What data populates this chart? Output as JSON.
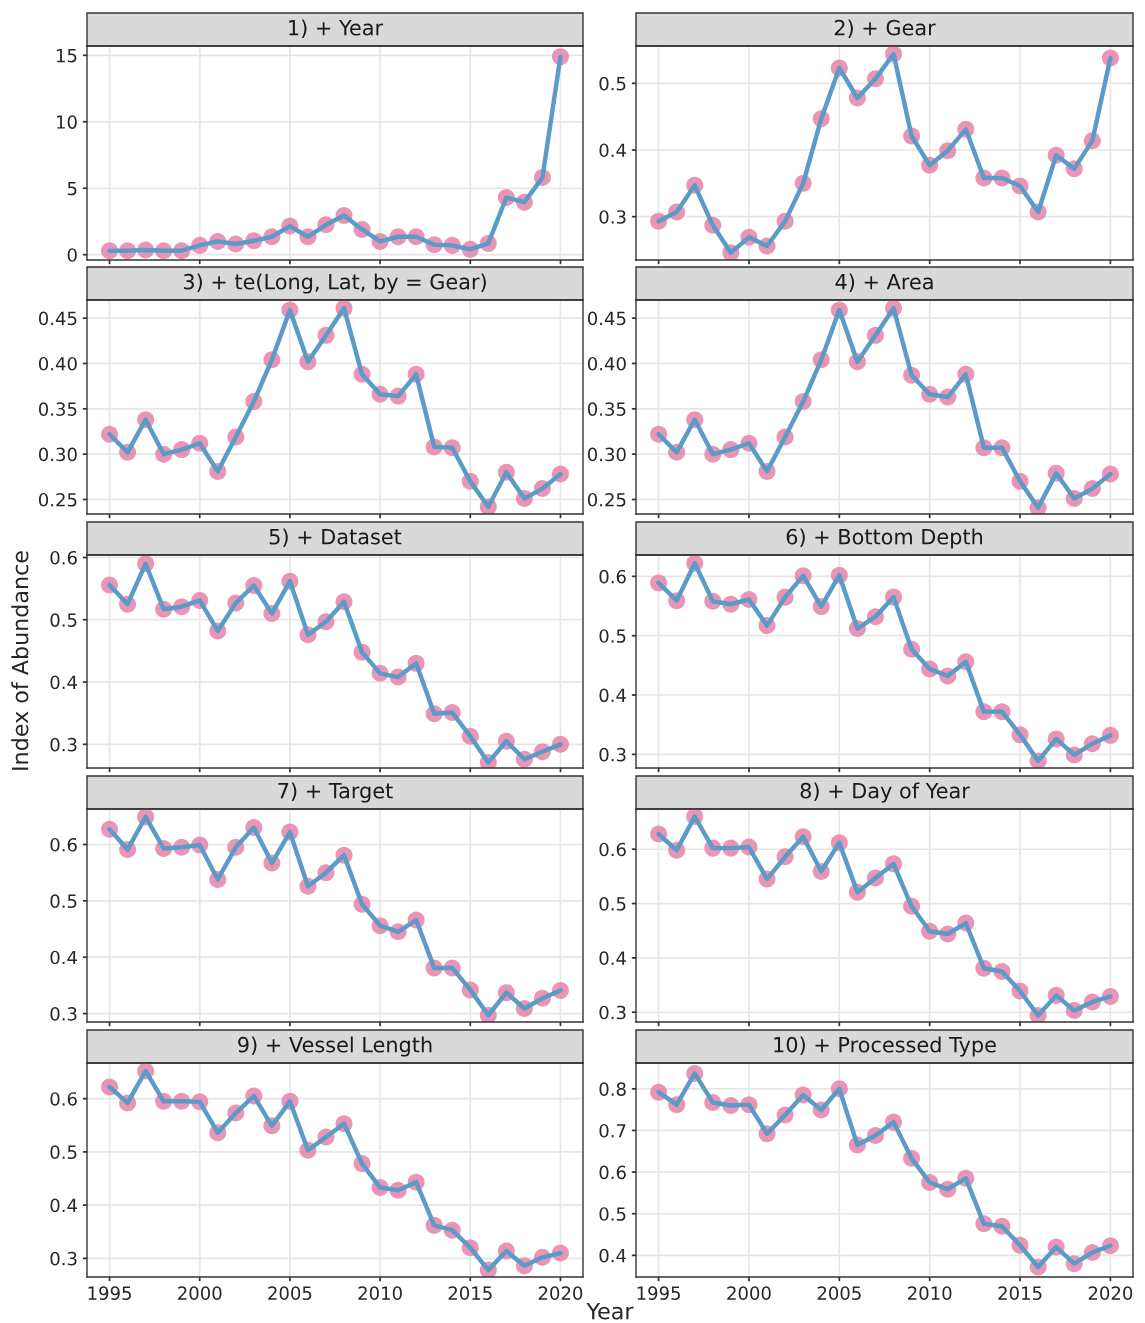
{
  "chart_data": [
    {
      "type": "line",
      "title": "1) + Year",
      "x": [
        1995,
        1996,
        1997,
        1998,
        1999,
        2000,
        2001,
        2002,
        2003,
        2004,
        2005,
        2006,
        2007,
        2008,
        2009,
        2010,
        2011,
        2012,
        2013,
        2014,
        2015,
        2016,
        2017,
        2018,
        2019,
        2020
      ],
      "xlim": [
        1993.75,
        2021.25
      ],
      "xticks": [
        1995,
        2000,
        2005,
        2010,
        2015,
        2020
      ],
      "ylim": [
        -0.4,
        15.7
      ],
      "yticks": [
        0,
        5,
        10,
        15
      ],
      "tick_labels": "y",
      "grid": true,
      "series": [
        {
          "type": "scatter",
          "color": "#e882a9",
          "marker": "circle",
          "values": [
            0.3,
            0.3,
            0.35,
            0.3,
            0.3,
            0.7,
            1.0,
            0.8,
            1.05,
            1.35,
            2.15,
            1.35,
            2.25,
            2.95,
            1.9,
            1.0,
            1.35,
            1.35,
            0.75,
            0.7,
            0.4,
            0.85,
            4.3,
            3.95,
            5.8,
            14.9
          ]
        },
        {
          "type": "line",
          "color": "#5b9bc8",
          "values": [
            0.3,
            0.3,
            0.35,
            0.3,
            0.3,
            0.7,
            1.0,
            0.8,
            1.05,
            1.35,
            2.15,
            1.35,
            2.25,
            2.95,
            1.9,
            1.0,
            1.35,
            1.35,
            0.75,
            0.7,
            0.4,
            0.85,
            4.3,
            3.95,
            5.8,
            14.9
          ]
        }
      ]
    },
    {
      "type": "line",
      "title": "2) + Gear",
      "x": [
        1995,
        1996,
        1997,
        1998,
        1999,
        2000,
        2001,
        2002,
        2003,
        2004,
        2005,
        2006,
        2007,
        2008,
        2009,
        2010,
        2011,
        2012,
        2013,
        2014,
        2015,
        2016,
        2017,
        2018,
        2019,
        2020
      ],
      "xlim": [
        1993.75,
        2021.25
      ],
      "xticks": [
        1995,
        2000,
        2005,
        2010,
        2015,
        2020
      ],
      "ylim": [
        0.235,
        0.556
      ],
      "yticks": [
        0.3,
        0.4,
        0.5
      ],
      "tick_labels": "y",
      "grid": true,
      "series": [
        {
          "type": "scatter",
          "color": "#e882a9",
          "marker": "circle",
          "values": [
            0.293,
            0.307,
            0.347,
            0.287,
            0.246,
            0.269,
            0.256,
            0.293,
            0.35,
            0.447,
            0.523,
            0.478,
            0.507,
            0.544,
            0.421,
            0.377,
            0.399,
            0.431,
            0.358,
            0.358,
            0.346,
            0.307,
            0.392,
            0.372,
            0.414,
            0.538
          ]
        },
        {
          "type": "line",
          "color": "#5b9bc8",
          "values": [
            0.293,
            0.307,
            0.347,
            0.287,
            0.246,
            0.269,
            0.256,
            0.293,
            0.35,
            0.447,
            0.523,
            0.478,
            0.507,
            0.544,
            0.421,
            0.377,
            0.399,
            0.431,
            0.358,
            0.358,
            0.346,
            0.307,
            0.392,
            0.372,
            0.414,
            0.538
          ]
        }
      ]
    },
    {
      "type": "line",
      "title": "3) + te(Long, Lat, by = Gear)",
      "x": [
        1995,
        1996,
        1997,
        1998,
        1999,
        2000,
        2001,
        2002,
        2003,
        2004,
        2005,
        2006,
        2007,
        2008,
        2009,
        2010,
        2011,
        2012,
        2013,
        2014,
        2015,
        2016,
        2017,
        2018,
        2019,
        2020
      ],
      "xlim": [
        1993.75,
        2021.25
      ],
      "xticks": [
        1995,
        2000,
        2005,
        2010,
        2015,
        2020
      ],
      "ylim": [
        0.234,
        0.47
      ],
      "yticks": [
        {
          "value": 0.25,
          "label": "0.25"
        },
        {
          "value": 0.3,
          "label": "0.30"
        },
        {
          "value": 0.35,
          "label": "0.35"
        },
        {
          "value": 0.4,
          "label": "0.40"
        },
        {
          "value": 0.45,
          "label": "0.45"
        }
      ],
      "tick_labels": "y",
      "grid": true,
      "series": [
        {
          "type": "scatter",
          "color": "#e882a9",
          "marker": "circle",
          "values": [
            0.322,
            0.302,
            0.338,
            0.3,
            0.305,
            0.312,
            0.281,
            0.319,
            0.358,
            0.404,
            0.459,
            0.402,
            0.431,
            0.461,
            0.388,
            0.366,
            0.364,
            0.388,
            0.308,
            0.307,
            0.27,
            0.242,
            0.28,
            0.251,
            0.262,
            0.278
          ]
        },
        {
          "type": "line",
          "color": "#5b9bc8",
          "values": [
            0.322,
            0.302,
            0.338,
            0.3,
            0.305,
            0.312,
            0.281,
            0.319,
            0.358,
            0.404,
            0.459,
            0.402,
            0.431,
            0.461,
            0.388,
            0.366,
            0.364,
            0.388,
            0.308,
            0.307,
            0.27,
            0.242,
            0.28,
            0.251,
            0.262,
            0.278
          ]
        }
      ]
    },
    {
      "type": "line",
      "title": "4) + Area",
      "x": [
        1995,
        1996,
        1997,
        1998,
        1999,
        2000,
        2001,
        2002,
        2003,
        2004,
        2005,
        2006,
        2007,
        2008,
        2009,
        2010,
        2011,
        2012,
        2013,
        2014,
        2015,
        2016,
        2017,
        2018,
        2019,
        2020
      ],
      "xlim": [
        1993.75,
        2021.25
      ],
      "xticks": [
        1995,
        2000,
        2005,
        2010,
        2015,
        2020
      ],
      "ylim": [
        0.234,
        0.47
      ],
      "yticks": [
        {
          "value": 0.25,
          "label": "0.25"
        },
        {
          "value": 0.3,
          "label": "0.30"
        },
        {
          "value": 0.35,
          "label": "0.35"
        },
        {
          "value": 0.4,
          "label": "0.40"
        },
        {
          "value": 0.45,
          "label": "0.45"
        }
      ],
      "tick_labels": "y",
      "grid": true,
      "series": [
        {
          "type": "scatter",
          "color": "#e882a9",
          "marker": "circle",
          "values": [
            0.322,
            0.302,
            0.338,
            0.3,
            0.305,
            0.312,
            0.281,
            0.319,
            0.358,
            0.404,
            0.459,
            0.402,
            0.431,
            0.461,
            0.387,
            0.366,
            0.363,
            0.388,
            0.307,
            0.307,
            0.27,
            0.241,
            0.279,
            0.251,
            0.262,
            0.278
          ]
        },
        {
          "type": "line",
          "color": "#5b9bc8",
          "values": [
            0.322,
            0.302,
            0.338,
            0.3,
            0.305,
            0.312,
            0.281,
            0.319,
            0.358,
            0.404,
            0.459,
            0.402,
            0.431,
            0.461,
            0.387,
            0.366,
            0.363,
            0.388,
            0.307,
            0.307,
            0.27,
            0.241,
            0.279,
            0.251,
            0.262,
            0.278
          ]
        }
      ]
    },
    {
      "type": "line",
      "title": "5) + Dataset",
      "ylabel": "Index of Abundance",
      "x": [
        1995,
        1996,
        1997,
        1998,
        1999,
        2000,
        2001,
        2002,
        2003,
        2004,
        2005,
        2006,
        2007,
        2008,
        2009,
        2010,
        2011,
        2012,
        2013,
        2014,
        2015,
        2016,
        2017,
        2018,
        2019,
        2020
      ],
      "xlim": [
        1993.75,
        2021.25
      ],
      "xticks": [
        1995,
        2000,
        2005,
        2010,
        2015,
        2020
      ],
      "ylim": [
        0.262,
        0.604
      ],
      "yticks": [
        0.3,
        0.4,
        0.5,
        0.6
      ],
      "tick_labels": "y",
      "grid": true,
      "series": [
        {
          "type": "scatter",
          "color": "#e882a9",
          "marker": "circle",
          "values": [
            0.556,
            0.525,
            0.59,
            0.517,
            0.521,
            0.531,
            0.482,
            0.527,
            0.555,
            0.51,
            0.562,
            0.476,
            0.497,
            0.529,
            0.448,
            0.414,
            0.408,
            0.43,
            0.349,
            0.351,
            0.313,
            0.271,
            0.305,
            0.276,
            0.288,
            0.3
          ]
        },
        {
          "type": "line",
          "color": "#5b9bc8",
          "values": [
            0.556,
            0.525,
            0.59,
            0.517,
            0.521,
            0.531,
            0.482,
            0.527,
            0.555,
            0.51,
            0.562,
            0.476,
            0.497,
            0.529,
            0.448,
            0.414,
            0.408,
            0.43,
            0.349,
            0.351,
            0.313,
            0.271,
            0.305,
            0.276,
            0.288,
            0.3
          ]
        }
      ]
    },
    {
      "type": "line",
      "title": "6) + Bottom Depth",
      "x": [
        1995,
        1996,
        1997,
        1998,
        1999,
        2000,
        2001,
        2002,
        2003,
        2004,
        2005,
        2006,
        2007,
        2008,
        2009,
        2010,
        2011,
        2012,
        2013,
        2014,
        2015,
        2016,
        2017,
        2018,
        2019,
        2020
      ],
      "xlim": [
        1993.75,
        2021.25
      ],
      "xticks": [
        1995,
        2000,
        2005,
        2010,
        2015,
        2020
      ],
      "ylim": [
        0.277,
        0.636
      ],
      "yticks": [
        0.3,
        0.4,
        0.5,
        0.6
      ],
      "tick_labels": "y",
      "grid": true,
      "series": [
        {
          "type": "scatter",
          "color": "#e882a9",
          "marker": "circle",
          "values": [
            0.589,
            0.559,
            0.622,
            0.558,
            0.553,
            0.561,
            0.517,
            0.565,
            0.601,
            0.549,
            0.602,
            0.512,
            0.532,
            0.565,
            0.477,
            0.444,
            0.432,
            0.456,
            0.372,
            0.372,
            0.333,
            0.289,
            0.326,
            0.299,
            0.318,
            0.332
          ]
        },
        {
          "type": "line",
          "color": "#5b9bc8",
          "values": [
            0.589,
            0.559,
            0.622,
            0.558,
            0.553,
            0.561,
            0.517,
            0.565,
            0.601,
            0.549,
            0.602,
            0.512,
            0.532,
            0.565,
            0.477,
            0.444,
            0.432,
            0.456,
            0.372,
            0.372,
            0.333,
            0.289,
            0.326,
            0.299,
            0.318,
            0.332
          ]
        }
      ]
    },
    {
      "type": "line",
      "title": "7) + Target",
      "x": [
        1995,
        1996,
        1997,
        1998,
        1999,
        2000,
        2001,
        2002,
        2003,
        2004,
        2005,
        2006,
        2007,
        2008,
        2009,
        2010,
        2011,
        2012,
        2013,
        2014,
        2015,
        2016,
        2017,
        2018,
        2019,
        2020
      ],
      "xlim": [
        1993.75,
        2021.25
      ],
      "xticks": [
        1995,
        2000,
        2005,
        2010,
        2015,
        2020
      ],
      "ylim": [
        0.285,
        0.663
      ],
      "yticks": [
        0.3,
        0.4,
        0.5,
        0.6
      ],
      "tick_labels": "y",
      "grid": true,
      "series": [
        {
          "type": "scatter",
          "color": "#e882a9",
          "marker": "circle",
          "values": [
            0.627,
            0.591,
            0.649,
            0.593,
            0.595,
            0.599,
            0.538,
            0.595,
            0.63,
            0.567,
            0.622,
            0.526,
            0.55,
            0.581,
            0.494,
            0.456,
            0.445,
            0.466,
            0.381,
            0.381,
            0.342,
            0.297,
            0.337,
            0.309,
            0.327,
            0.341
          ]
        },
        {
          "type": "line",
          "color": "#5b9bc8",
          "values": [
            0.627,
            0.591,
            0.649,
            0.593,
            0.595,
            0.599,
            0.538,
            0.595,
            0.63,
            0.567,
            0.622,
            0.526,
            0.55,
            0.581,
            0.494,
            0.456,
            0.445,
            0.466,
            0.381,
            0.381,
            0.342,
            0.297,
            0.337,
            0.309,
            0.327,
            0.341
          ]
        }
      ]
    },
    {
      "type": "line",
      "title": "8) + Day of Year",
      "x": [
        1995,
        1996,
        1997,
        1998,
        1999,
        2000,
        2001,
        2002,
        2003,
        2004,
        2005,
        2006,
        2007,
        2008,
        2009,
        2010,
        2011,
        2012,
        2013,
        2014,
        2015,
        2016,
        2017,
        2018,
        2019,
        2020
      ],
      "xlim": [
        1993.75,
        2021.25
      ],
      "xticks": [
        1995,
        2000,
        2005,
        2010,
        2015,
        2020
      ],
      "ylim": [
        0.282,
        0.674
      ],
      "yticks": [
        0.3,
        0.4,
        0.5,
        0.6
      ],
      "tick_labels": "y",
      "grid": true,
      "series": [
        {
          "type": "scatter",
          "color": "#e882a9",
          "marker": "circle",
          "values": [
            0.628,
            0.598,
            0.66,
            0.602,
            0.602,
            0.604,
            0.545,
            0.586,
            0.623,
            0.559,
            0.612,
            0.521,
            0.547,
            0.573,
            0.495,
            0.449,
            0.444,
            0.464,
            0.381,
            0.375,
            0.339,
            0.294,
            0.331,
            0.303,
            0.319,
            0.329
          ]
        },
        {
          "type": "line",
          "color": "#5b9bc8",
          "values": [
            0.628,
            0.598,
            0.66,
            0.602,
            0.602,
            0.604,
            0.545,
            0.586,
            0.623,
            0.559,
            0.612,
            0.521,
            0.547,
            0.573,
            0.495,
            0.449,
            0.444,
            0.464,
            0.381,
            0.375,
            0.339,
            0.294,
            0.331,
            0.303,
            0.319,
            0.329
          ]
        }
      ]
    },
    {
      "type": "line",
      "title": "9) + Vessel Length",
      "x": [
        1995,
        1996,
        1997,
        1998,
        1999,
        2000,
        2001,
        2002,
        2003,
        2004,
        2005,
        2006,
        2007,
        2008,
        2009,
        2010,
        2011,
        2012,
        2013,
        2014,
        2015,
        2016,
        2017,
        2018,
        2019,
        2020
      ],
      "xlim": [
        1993.75,
        2021.25
      ],
      "xticks": [
        1995,
        2000,
        2005,
        2010,
        2015,
        2020
      ],
      "ylim": [
        0.265,
        0.667
      ],
      "yticks": [
        0.3,
        0.4,
        0.5,
        0.6
      ],
      "grid": true,
      "series": [
        {
          "type": "scatter",
          "color": "#e882a9",
          "marker": "circle",
          "values": [
            0.622,
            0.592,
            0.652,
            0.595,
            0.595,
            0.594,
            0.536,
            0.573,
            0.605,
            0.549,
            0.595,
            0.503,
            0.528,
            0.553,
            0.478,
            0.433,
            0.428,
            0.443,
            0.362,
            0.353,
            0.32,
            0.278,
            0.314,
            0.286,
            0.302,
            0.31
          ]
        },
        {
          "type": "line",
          "color": "#5b9bc8",
          "values": [
            0.622,
            0.592,
            0.652,
            0.595,
            0.595,
            0.594,
            0.536,
            0.573,
            0.605,
            0.549,
            0.595,
            0.503,
            0.528,
            0.553,
            0.478,
            0.433,
            0.428,
            0.443,
            0.362,
            0.353,
            0.32,
            0.278,
            0.314,
            0.286,
            0.302,
            0.31
          ]
        }
      ]
    },
    {
      "type": "line",
      "title": "10) + Processed Type",
      "xlabel": "Year",
      "x": [
        1995,
        1996,
        1997,
        1998,
        1999,
        2000,
        2001,
        2002,
        2003,
        2004,
        2005,
        2006,
        2007,
        2008,
        2009,
        2010,
        2011,
        2012,
        2013,
        2014,
        2015,
        2016,
        2017,
        2018,
        2019,
        2020
      ],
      "xlim": [
        1993.75,
        2021.25
      ],
      "xticks": [
        1995,
        2000,
        2005,
        2010,
        2015,
        2020
      ],
      "ylim": [
        0.348,
        0.862
      ],
      "yticks": [
        0.4,
        0.5,
        0.6,
        0.7,
        0.8
      ],
      "grid": true,
      "series": [
        {
          "type": "scatter",
          "color": "#e882a9",
          "marker": "circle",
          "values": [
            0.792,
            0.762,
            0.837,
            0.767,
            0.76,
            0.762,
            0.692,
            0.737,
            0.785,
            0.749,
            0.8,
            0.665,
            0.688,
            0.72,
            0.633,
            0.575,
            0.559,
            0.585,
            0.476,
            0.47,
            0.424,
            0.372,
            0.42,
            0.38,
            0.407,
            0.423
          ]
        },
        {
          "type": "line",
          "color": "#5b9bc8",
          "values": [
            0.792,
            0.762,
            0.837,
            0.767,
            0.76,
            0.762,
            0.692,
            0.737,
            0.785,
            0.749,
            0.8,
            0.665,
            0.688,
            0.72,
            0.633,
            0.575,
            0.559,
            0.585,
            0.476,
            0.47,
            0.424,
            0.372,
            0.42,
            0.38,
            0.407,
            0.423
          ]
        }
      ]
    }
  ]
}
